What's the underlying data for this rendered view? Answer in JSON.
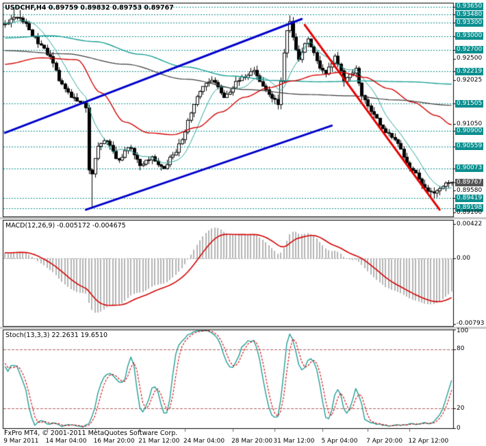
{
  "main_panel": {
    "title_line": "USDCHF,H4 0.89759 0.89832 0.89753 0.89767"
  },
  "macd_panel": {
    "label": "MACD(12,26,9) -0.005172 -0.004675"
  },
  "stoch_panel": {
    "label": "Stoch(13,3,3) 22.2631 19.6510"
  },
  "footer": {
    "copyright": "FxPro MT4, © 2001-2011 MetaQuotes Software Corp."
  },
  "colors": {
    "background": "#ffffff",
    "frame": "#000000",
    "splitter": "#c8c8c8",
    "level_line": "#0c8e8e",
    "level_tag_bg": "#0c8e8e",
    "current_tag_bg": "#545454",
    "candle_up": "#ffffff",
    "candle_down": "#000000",
    "candle_border": "#000000",
    "channel_line": "#0000cc",
    "down_trendline": "#e60000",
    "macd_histogram": "#b4b4b4",
    "macd_signal": "#d40000",
    "macd_zero": "#9a9a9a",
    "stoch_k": "#1f9e96",
    "stoch_d": "#d40000",
    "stoch_level": "#b05c5c",
    "text": "#000000"
  },
  "chart_data": [
    {
      "type": "candlestick",
      "title": "USDCHF,H4",
      "symbol": "USDCHF",
      "timeframe": "H4",
      "ohlc_display": {
        "open": "0.89759",
        "high": "0.89832",
        "low": "0.89753",
        "close": "0.89767"
      },
      "ylim": [
        0.8901,
        0.9374
      ],
      "bars": 150,
      "warmup": {
        "bars": 60,
        "from": 0.927,
        "to": 0.933
      },
      "close_anchors": [
        [
          0,
          0.933
        ],
        [
          3,
          0.9342
        ],
        [
          6,
          0.9335
        ],
        [
          9,
          0.9302
        ],
        [
          12,
          0.928
        ],
        [
          14,
          0.9262
        ],
        [
          16,
          0.924
        ],
        [
          18,
          0.9202
        ],
        [
          20,
          0.9185
        ],
        [
          22,
          0.9166
        ],
        [
          24,
          0.9158
        ],
        [
          26,
          0.915
        ],
        [
          27,
          0.914
        ],
        [
          28,
          0.9
        ],
        [
          29,
          0.8992
        ],
        [
          30,
          0.903
        ],
        [
          31,
          0.9056
        ],
        [
          33,
          0.9072
        ],
        [
          35,
          0.906
        ],
        [
          37,
          0.9026
        ],
        [
          39,
          0.9032
        ],
        [
          41,
          0.9056
        ],
        [
          43,
          0.904
        ],
        [
          45,
          0.9012
        ],
        [
          47,
          0.9026
        ],
        [
          49,
          0.9032
        ],
        [
          51,
          0.9018
        ],
        [
          53,
          0.9004
        ],
        [
          55,
          0.903
        ],
        [
          57,
          0.9046
        ],
        [
          59,
          0.9072
        ],
        [
          61,
          0.9112
        ],
        [
          63,
          0.9146
        ],
        [
          65,
          0.918
        ],
        [
          67,
          0.9196
        ],
        [
          69,
          0.9206
        ],
        [
          71,
          0.9186
        ],
        [
          73,
          0.9166
        ],
        [
          75,
          0.918
        ],
        [
          77,
          0.9196
        ],
        [
          79,
          0.9206
        ],
        [
          81,
          0.9216
        ],
        [
          83,
          0.9226
        ],
        [
          85,
          0.92
        ],
        [
          87,
          0.918
        ],
        [
          89,
          0.9164
        ],
        [
          91,
          0.915
        ],
        [
          92,
          0.92
        ],
        [
          93,
          0.9262
        ],
        [
          94,
          0.9312
        ],
        [
          95,
          0.9332
        ],
        [
          96,
          0.93
        ],
        [
          97,
          0.9272
        ],
        [
          98,
          0.925
        ],
        [
          100,
          0.9282
        ],
        [
          101,
          0.9296
        ],
        [
          103,
          0.9262
        ],
        [
          105,
          0.9232
        ],
        [
          107,
          0.922
        ],
        [
          109,
          0.9242
        ],
        [
          110,
          0.9256
        ],
        [
          112,
          0.9222
        ],
        [
          113,
          0.9196
        ],
        [
          115,
          0.9216
        ],
        [
          117,
          0.9226
        ],
        [
          119,
          0.9166
        ],
        [
          121,
          0.9146
        ],
        [
          123,
          0.9126
        ],
        [
          125,
          0.9106
        ],
        [
          127,
          0.9086
        ],
        [
          129,
          0.9076
        ],
        [
          131,
          0.906
        ],
        [
          133,
          0.9036
        ],
        [
          135,
          0.901
        ],
        [
          137,
          0.8996
        ],
        [
          139,
          0.8968
        ],
        [
          141,
          0.8956
        ],
        [
          143,
          0.895
        ],
        [
          145,
          0.8964
        ],
        [
          147,
          0.8972
        ],
        [
          149,
          0.89767
        ]
      ],
      "spikes": [
        {
          "bar": 3,
          "high": 0.9363
        },
        {
          "bar": 5,
          "high": 0.9358
        },
        {
          "bar": 29,
          "low": 0.8919
        },
        {
          "bar": 95,
          "high": 0.9346
        },
        {
          "bar": 143,
          "low": 0.8941
        },
        {
          "bar": 144,
          "low": 0.8943
        }
      ],
      "levels": [
        {
          "value": 0.9365,
          "label": "0.93650"
        },
        {
          "value": 0.9348,
          "label": "0.93480"
        },
        {
          "value": 0.933,
          "label": "0.93300"
        },
        {
          "value": 0.93,
          "label": "0.93000"
        },
        {
          "value": 0.927,
          "label": "0.92700"
        },
        {
          "value": 0.92219,
          "label": "0.92219"
        },
        {
          "value": 0.91505,
          "label": "0.91505"
        },
        {
          "value": 0.909,
          "label": "0.90900"
        },
        {
          "value": 0.90559,
          "label": "0.90559"
        },
        {
          "value": 0.90073,
          "label": "0.90073"
        },
        {
          "value": 0.89419,
          "label": "0.89419"
        },
        {
          "value": 0.89198,
          "label": "0.89198"
        }
      ],
      "grid_labels": [
        {
          "value": 0.925,
          "label": "0.92500"
        },
        {
          "value": 0.92025,
          "label": "0.92025"
        },
        {
          "value": 0.9105,
          "label": "0.91050"
        },
        {
          "value": 0.8958,
          "label": "0.89580"
        },
        {
          "value": 0.891,
          "label": "0.89100"
        }
      ],
      "current": {
        "value": 0.89767,
        "label": "0.89767"
      },
      "ma_lines": [
        {
          "name": "ma-teal-fast",
          "period": 9,
          "color": "#2aa79d",
          "width": 1
        },
        {
          "name": "ma-teal-slow",
          "color": "#18a098",
          "width": 1.4,
          "points": [
            [
              0,
              0.9296
            ],
            [
              15,
              0.9301
            ],
            [
              30,
              0.9288
            ],
            [
              45,
              0.926
            ],
            [
              60,
              0.9232
            ],
            [
              75,
              0.9212
            ],
            [
              90,
              0.9202
            ],
            [
              105,
              0.9199
            ],
            [
              120,
              0.9201
            ],
            [
              135,
              0.9199
            ],
            [
              149,
              0.9194
            ]
          ]
        },
        {
          "name": "ma-red",
          "color": "#d40000",
          "width": 1.4,
          "points": [
            [
              0,
              0.9238
            ],
            [
              12,
              0.9252
            ],
            [
              24,
              0.9248
            ],
            [
              32,
              0.9175
            ],
            [
              40,
              0.911
            ],
            [
              48,
              0.9086
            ],
            [
              56,
              0.9082
            ],
            [
              64,
              0.9098
            ],
            [
              72,
              0.9132
            ],
            [
              80,
              0.9165
            ],
            [
              88,
              0.9186
            ],
            [
              96,
              0.9201
            ],
            [
              104,
              0.9214
            ],
            [
              112,
              0.922
            ],
            [
              120,
              0.9209
            ],
            [
              128,
              0.9184
            ],
            [
              136,
              0.9154
            ],
            [
              144,
              0.9124
            ],
            [
              149,
              0.9104
            ]
          ]
        },
        {
          "name": "ma-gray",
          "color": "#3a3a3a",
          "width": 1.2,
          "points": [
            [
              0,
              0.9268
            ],
            [
              20,
              0.9261
            ],
            [
              40,
              0.9238
            ],
            [
              60,
              0.9205
            ],
            [
              80,
              0.9182
            ],
            [
              100,
              0.9171
            ],
            [
              115,
              0.9168
            ],
            [
              130,
              0.9159
            ],
            [
              149,
              0.9147
            ]
          ]
        }
      ],
      "trendlines": [
        {
          "name": "channel-upper",
          "color": "#0000cc",
          "width": 3,
          "p1": [
            0,
            0.9086
          ],
          "p2": [
            99,
            0.9338
          ]
        },
        {
          "name": "channel-lower",
          "color": "#0000cc",
          "width": 3,
          "p1": [
            27,
            0.8916
          ],
          "p2": [
            109,
            0.9102
          ]
        },
        {
          "name": "down-trendline",
          "color": "#e60000",
          "width": 3,
          "p1": [
            100,
            0.9325
          ],
          "p2": [
            145,
            0.8916
          ]
        }
      ],
      "time_axis": [
        {
          "bar": 0,
          "label": "9 Mar 2011"
        },
        {
          "bar": 14,
          "label": "14 Mar 04:00"
        },
        {
          "bar": 30,
          "label": "16 Mar 20:00"
        },
        {
          "bar": 45,
          "label": "21 Mar 12:00"
        },
        {
          "bar": 60,
          "label": "24 Mar 04:00"
        },
        {
          "bar": 76,
          "label": "28 Mar 20:00"
        },
        {
          "bar": 90,
          "label": "31 Mar 12:00"
        },
        {
          "bar": 106,
          "label": "5 Apr 04:00"
        },
        {
          "bar": 121,
          "label": "7 Apr 20:00"
        },
        {
          "bar": 135,
          "label": "12 Apr 12:00"
        }
      ]
    },
    {
      "type": "macd",
      "params": [
        12,
        26,
        9
      ],
      "value_main": -0.005172,
      "value_signal": -0.004675,
      "ylim": [
        -0.0082,
        0.0047
      ],
      "axis_labels": [
        {
          "value": 0.00422,
          "label": "0.00422"
        },
        {
          "value": 0,
          "label": "0.00"
        },
        {
          "value": -0.00793,
          "label": "-0.00793"
        }
      ]
    },
    {
      "type": "stochastic",
      "params": [
        13,
        3,
        3
      ],
      "value_k": 22.2631,
      "value_d": 19.651,
      "ylim": [
        0,
        100
      ],
      "levels": [
        20,
        80
      ],
      "axis_labels": [
        {
          "value": 100,
          "label": "100"
        },
        {
          "value": 80,
          "label": "80"
        },
        {
          "value": 20,
          "label": "20"
        },
        {
          "value": 0,
          "label": "0"
        }
      ]
    }
  ]
}
